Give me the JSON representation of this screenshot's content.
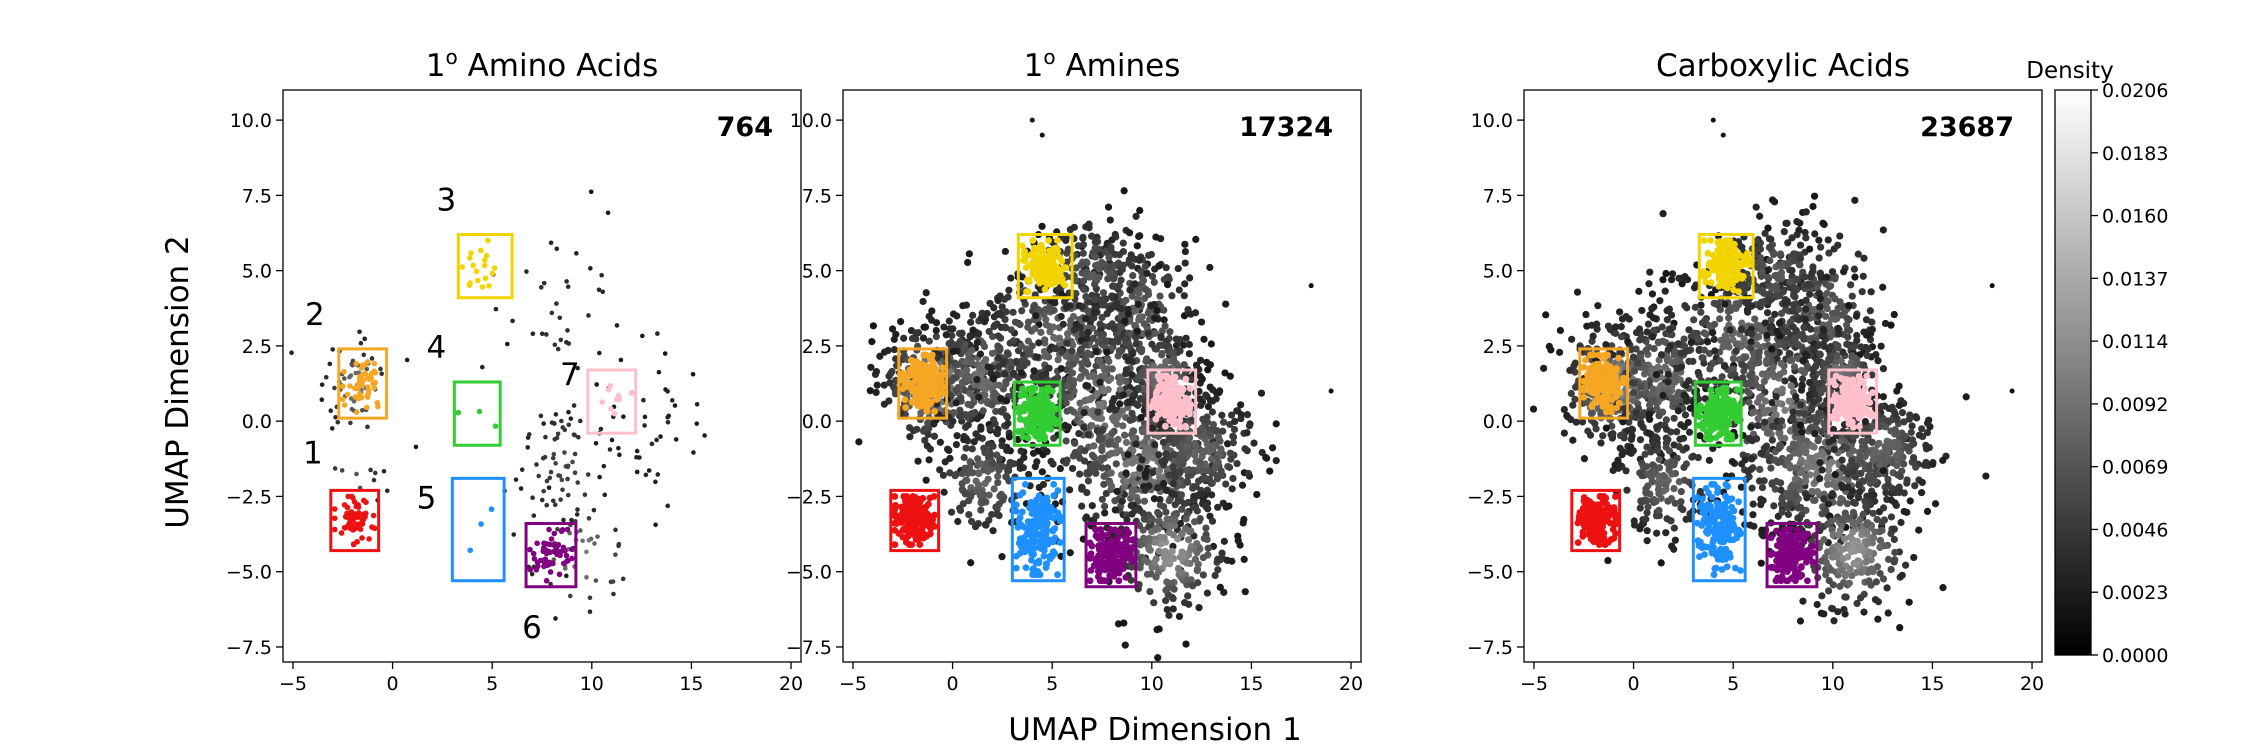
{
  "chart_data": {
    "type": "scatter",
    "xlabel": "UMAP Dimension 1",
    "ylabel": "UMAP Dimension 2",
    "xlim": [
      -5.5,
      20.5
    ],
    "ylim": [
      -8.0,
      11.0
    ],
    "xticks": [
      -5,
      0,
      5,
      10,
      15,
      20
    ],
    "yticks": [
      -7.5,
      -5.0,
      -2.5,
      0.0,
      2.5,
      5.0,
      7.5,
      10.0
    ],
    "xtick_labels": [
      "−5",
      "0",
      "5",
      "10",
      "15",
      "20"
    ],
    "ytick_labels": [
      "−7.5",
      "−5.0",
      "−2.5",
      "0.0",
      "2.5",
      "5.0",
      "7.5",
      "10.0"
    ],
    "colorbar": {
      "label": "Density",
      "min": 0.0,
      "max": 0.0206,
      "ticks": [
        "0.0000",
        "0.0023",
        "0.0046",
        "0.0069",
        "0.0092",
        "0.0114",
        "0.0137",
        "0.0160",
        "0.0183",
        "0.0206"
      ]
    },
    "regions": [
      {
        "label": "1",
        "color": "#ee1111",
        "x": [
          -3.1,
          -0.7
        ],
        "y": [
          -4.3,
          -2.3
        ]
      },
      {
        "label": "2",
        "color": "#f5a623",
        "x": [
          -2.7,
          -0.3
        ],
        "y": [
          0.1,
          2.4
        ]
      },
      {
        "label": "3",
        "color": "#f2d500",
        "x": [
          3.3,
          6.0
        ],
        "y": [
          4.1,
          6.2
        ]
      },
      {
        "label": "4",
        "color": "#33cc33",
        "x": [
          3.1,
          5.4
        ],
        "y": [
          -0.8,
          1.3
        ]
      },
      {
        "label": "5",
        "color": "#1e90ff",
        "x": [
          3.0,
          5.6
        ],
        "y": [
          -5.3,
          -1.9
        ]
      },
      {
        "label": "6",
        "color": "#800080",
        "x": [
          6.7,
          9.2
        ],
        "y": [
          -5.5,
          -3.4
        ]
      },
      {
        "label": "7",
        "color": "#ffc0cb",
        "x": [
          9.8,
          12.2
        ],
        "y": [
          -0.4,
          1.7
        ]
      }
    ],
    "panels": [
      {
        "title_base": "1",
        "title_sup": "o",
        "title_rest": " Amino Acids",
        "count": "764",
        "region_labels": true
      },
      {
        "title_base": "1",
        "title_sup": "o",
        "title_rest": " Amines",
        "count": "17324",
        "region_labels": false
      },
      {
        "title_base": "Carboxylic Acids",
        "title_sup": "",
        "title_rest": "",
        "count": "23687",
        "region_labels": false
      }
    ]
  }
}
